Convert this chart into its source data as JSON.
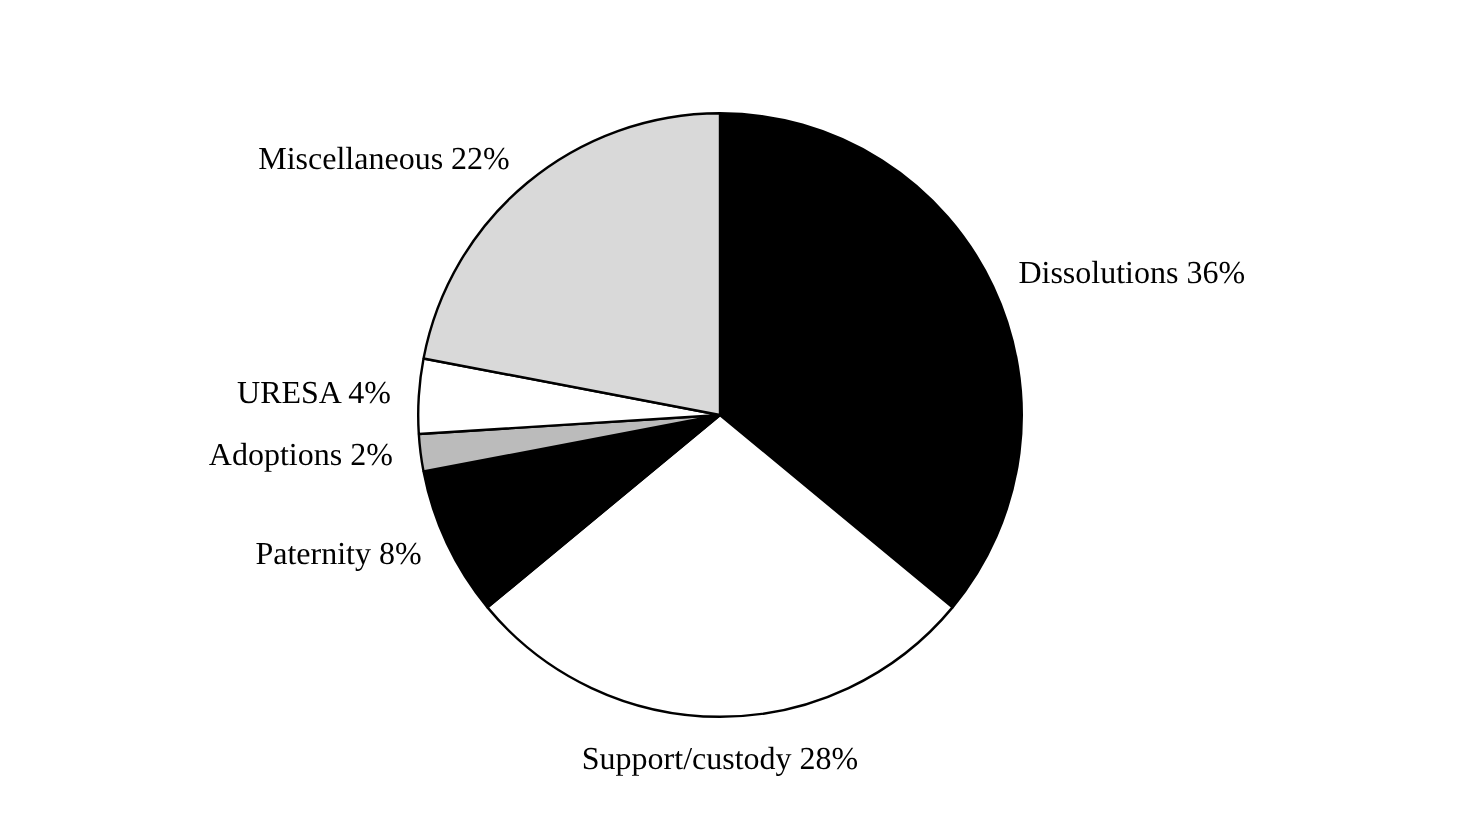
{
  "chart_data": {
    "type": "pie",
    "categories": [
      "Dissolutions",
      "Support/custody",
      "Paternity",
      "Adoptions",
      "URESA",
      "Miscellaneous"
    ],
    "values": [
      36,
      28,
      8,
      2,
      4,
      22
    ],
    "value_labels": [
      "36%",
      "28%",
      "8%",
      "2%",
      "4%",
      "22%"
    ],
    "colors": [
      "#000000",
      "#ffffff",
      "#000000",
      "#bbbbbb",
      "#ffffff",
      "#d9d9d9"
    ],
    "legend": false
  }
}
